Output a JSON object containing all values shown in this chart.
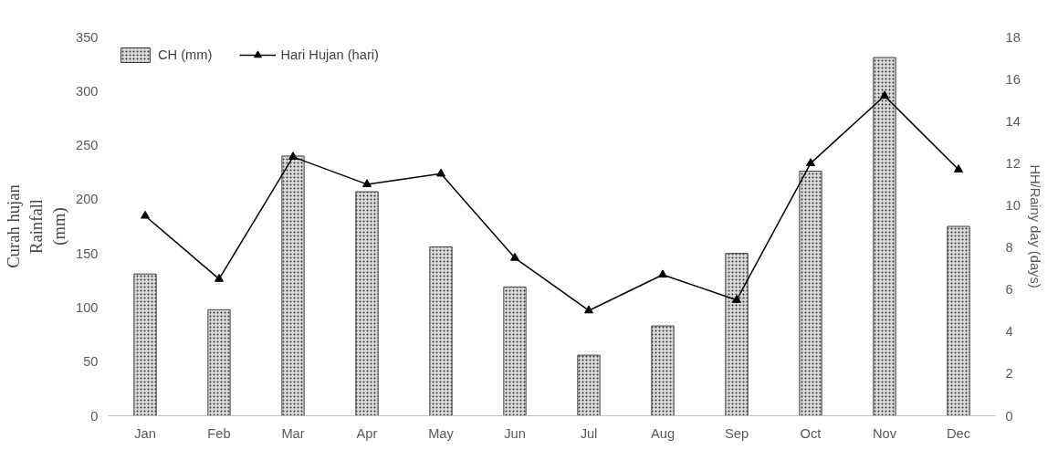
{
  "chart_data": {
    "type": "bar",
    "categories": [
      "Jan",
      "Feb",
      "Mar",
      "Apr",
      "May",
      "Jun",
      "Jul",
      "Aug",
      "Sep",
      "Oct",
      "Nov",
      "Dec"
    ],
    "series": [
      {
        "name": "CH (mm)",
        "color": "#d9d9d9",
        "values": [
          131,
          98,
          240,
          207,
          156,
          119,
          56,
          83,
          150,
          226,
          331,
          175
        ]
      },
      {
        "name": "Hari Hujan (hari)",
        "type": "line",
        "axis": "y2",
        "color": "#000000",
        "marker": "triangle",
        "values": [
          9.5,
          6.5,
          12.3,
          11.0,
          11.5,
          7.5,
          5.0,
          6.7,
          5.5,
          12.0,
          15.2,
          11.7
        ]
      }
    ],
    "ylabel": "Curah hujan\nRainfall\n(mm)",
    "y2label": "HH/Rainy day (days)",
    "ylim": [
      0,
      350
    ],
    "yticks": [
      0,
      50,
      100,
      150,
      200,
      250,
      300,
      350
    ],
    "y2lim": [
      0,
      18
    ],
    "y2ticks": [
      0,
      2,
      4,
      6,
      8,
      10,
      12,
      14,
      16,
      18
    ],
    "grid": false,
    "legend": "top left"
  }
}
